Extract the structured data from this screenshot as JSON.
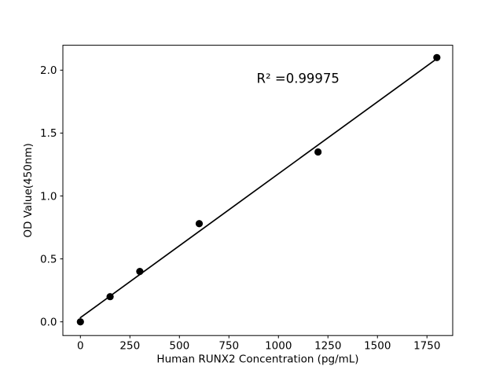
{
  "figure": {
    "background_color": "#ffffff",
    "foreground_color": "#000000"
  },
  "chart_data": {
    "type": "scatter",
    "title": "",
    "xlabel": "Human RUNX2 Concentration (pg/mL)",
    "ylabel": "OD Value(450nm)",
    "x": [
      0,
      150,
      300,
      600,
      1200,
      1800
    ],
    "y": [
      0.0,
      0.2,
      0.4,
      0.78,
      1.35,
      2.1
    ],
    "trendline": {
      "x1": 0,
      "y1": 0.033,
      "x2": 1800,
      "y2": 2.091
    },
    "annotation": {
      "text": "R² =0.99975",
      "x": 890,
      "y": 1.9
    },
    "x_ticks": [
      0,
      250,
      500,
      750,
      1000,
      1250,
      1500,
      1750
    ],
    "x_tick_labels": [
      "0",
      "250",
      "500",
      "750",
      "1000",
      "1250",
      "1500",
      "1750"
    ],
    "y_ticks": [
      0.0,
      0.5,
      1.0,
      1.5,
      2.0
    ],
    "y_tick_labels": [
      "0.0",
      "0.5",
      "1.0",
      "1.5",
      "2.0"
    ],
    "xlim": [
      -88.5,
      1880
    ],
    "ylim": [
      -0.109,
      2.198
    ],
    "grid": false,
    "legend": null,
    "marker_color": "#000000",
    "line_color": "#000000",
    "axes_box": true
  }
}
